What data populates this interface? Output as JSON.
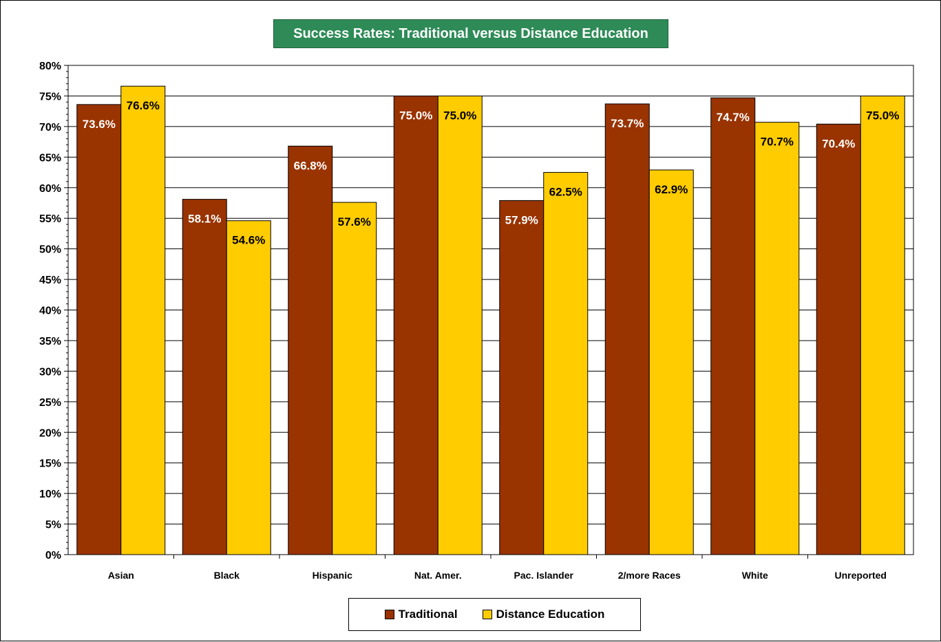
{
  "chart_data": {
    "type": "bar",
    "title": "Success Rates: Traditional versus Distance Education",
    "xlabel": "",
    "ylabel": "",
    "ylim": [
      0,
      80
    ],
    "yticks": [
      "0%",
      "5%",
      "10%",
      "15%",
      "20%",
      "25%",
      "30%",
      "35%",
      "40%",
      "45%",
      "50%",
      "55%",
      "60%",
      "65%",
      "70%",
      "75%",
      "80%"
    ],
    "categories": [
      "Asian",
      "Black",
      "Hispanic",
      "Nat. Amer.",
      "Pac. Islander",
      "2/more Races",
      "White",
      "Unreported"
    ],
    "series": [
      {
        "name": "Traditional",
        "color": "#993300",
        "label_color": "#ffffff",
        "values": [
          73.6,
          58.1,
          66.8,
          75.0,
          57.9,
          73.7,
          74.7,
          70.4
        ],
        "labels": [
          "73.6%",
          "58.1%",
          "66.8%",
          "75.0%",
          "57.9%",
          "73.7%",
          "74.7%",
          "70.4%"
        ]
      },
      {
        "name": "Distance Education",
        "color": "#ffcc00",
        "label_color": "#000000",
        "values": [
          76.6,
          54.6,
          57.6,
          75.0,
          62.5,
          62.9,
          70.7,
          75.0
        ],
        "labels": [
          "76.6%",
          "54.6%",
          "57.6%",
          "75.0%",
          "62.5%",
          "62.9%",
          "70.7%",
          "75.0%"
        ]
      }
    ],
    "grid": true,
    "legend_position": "bottom"
  }
}
